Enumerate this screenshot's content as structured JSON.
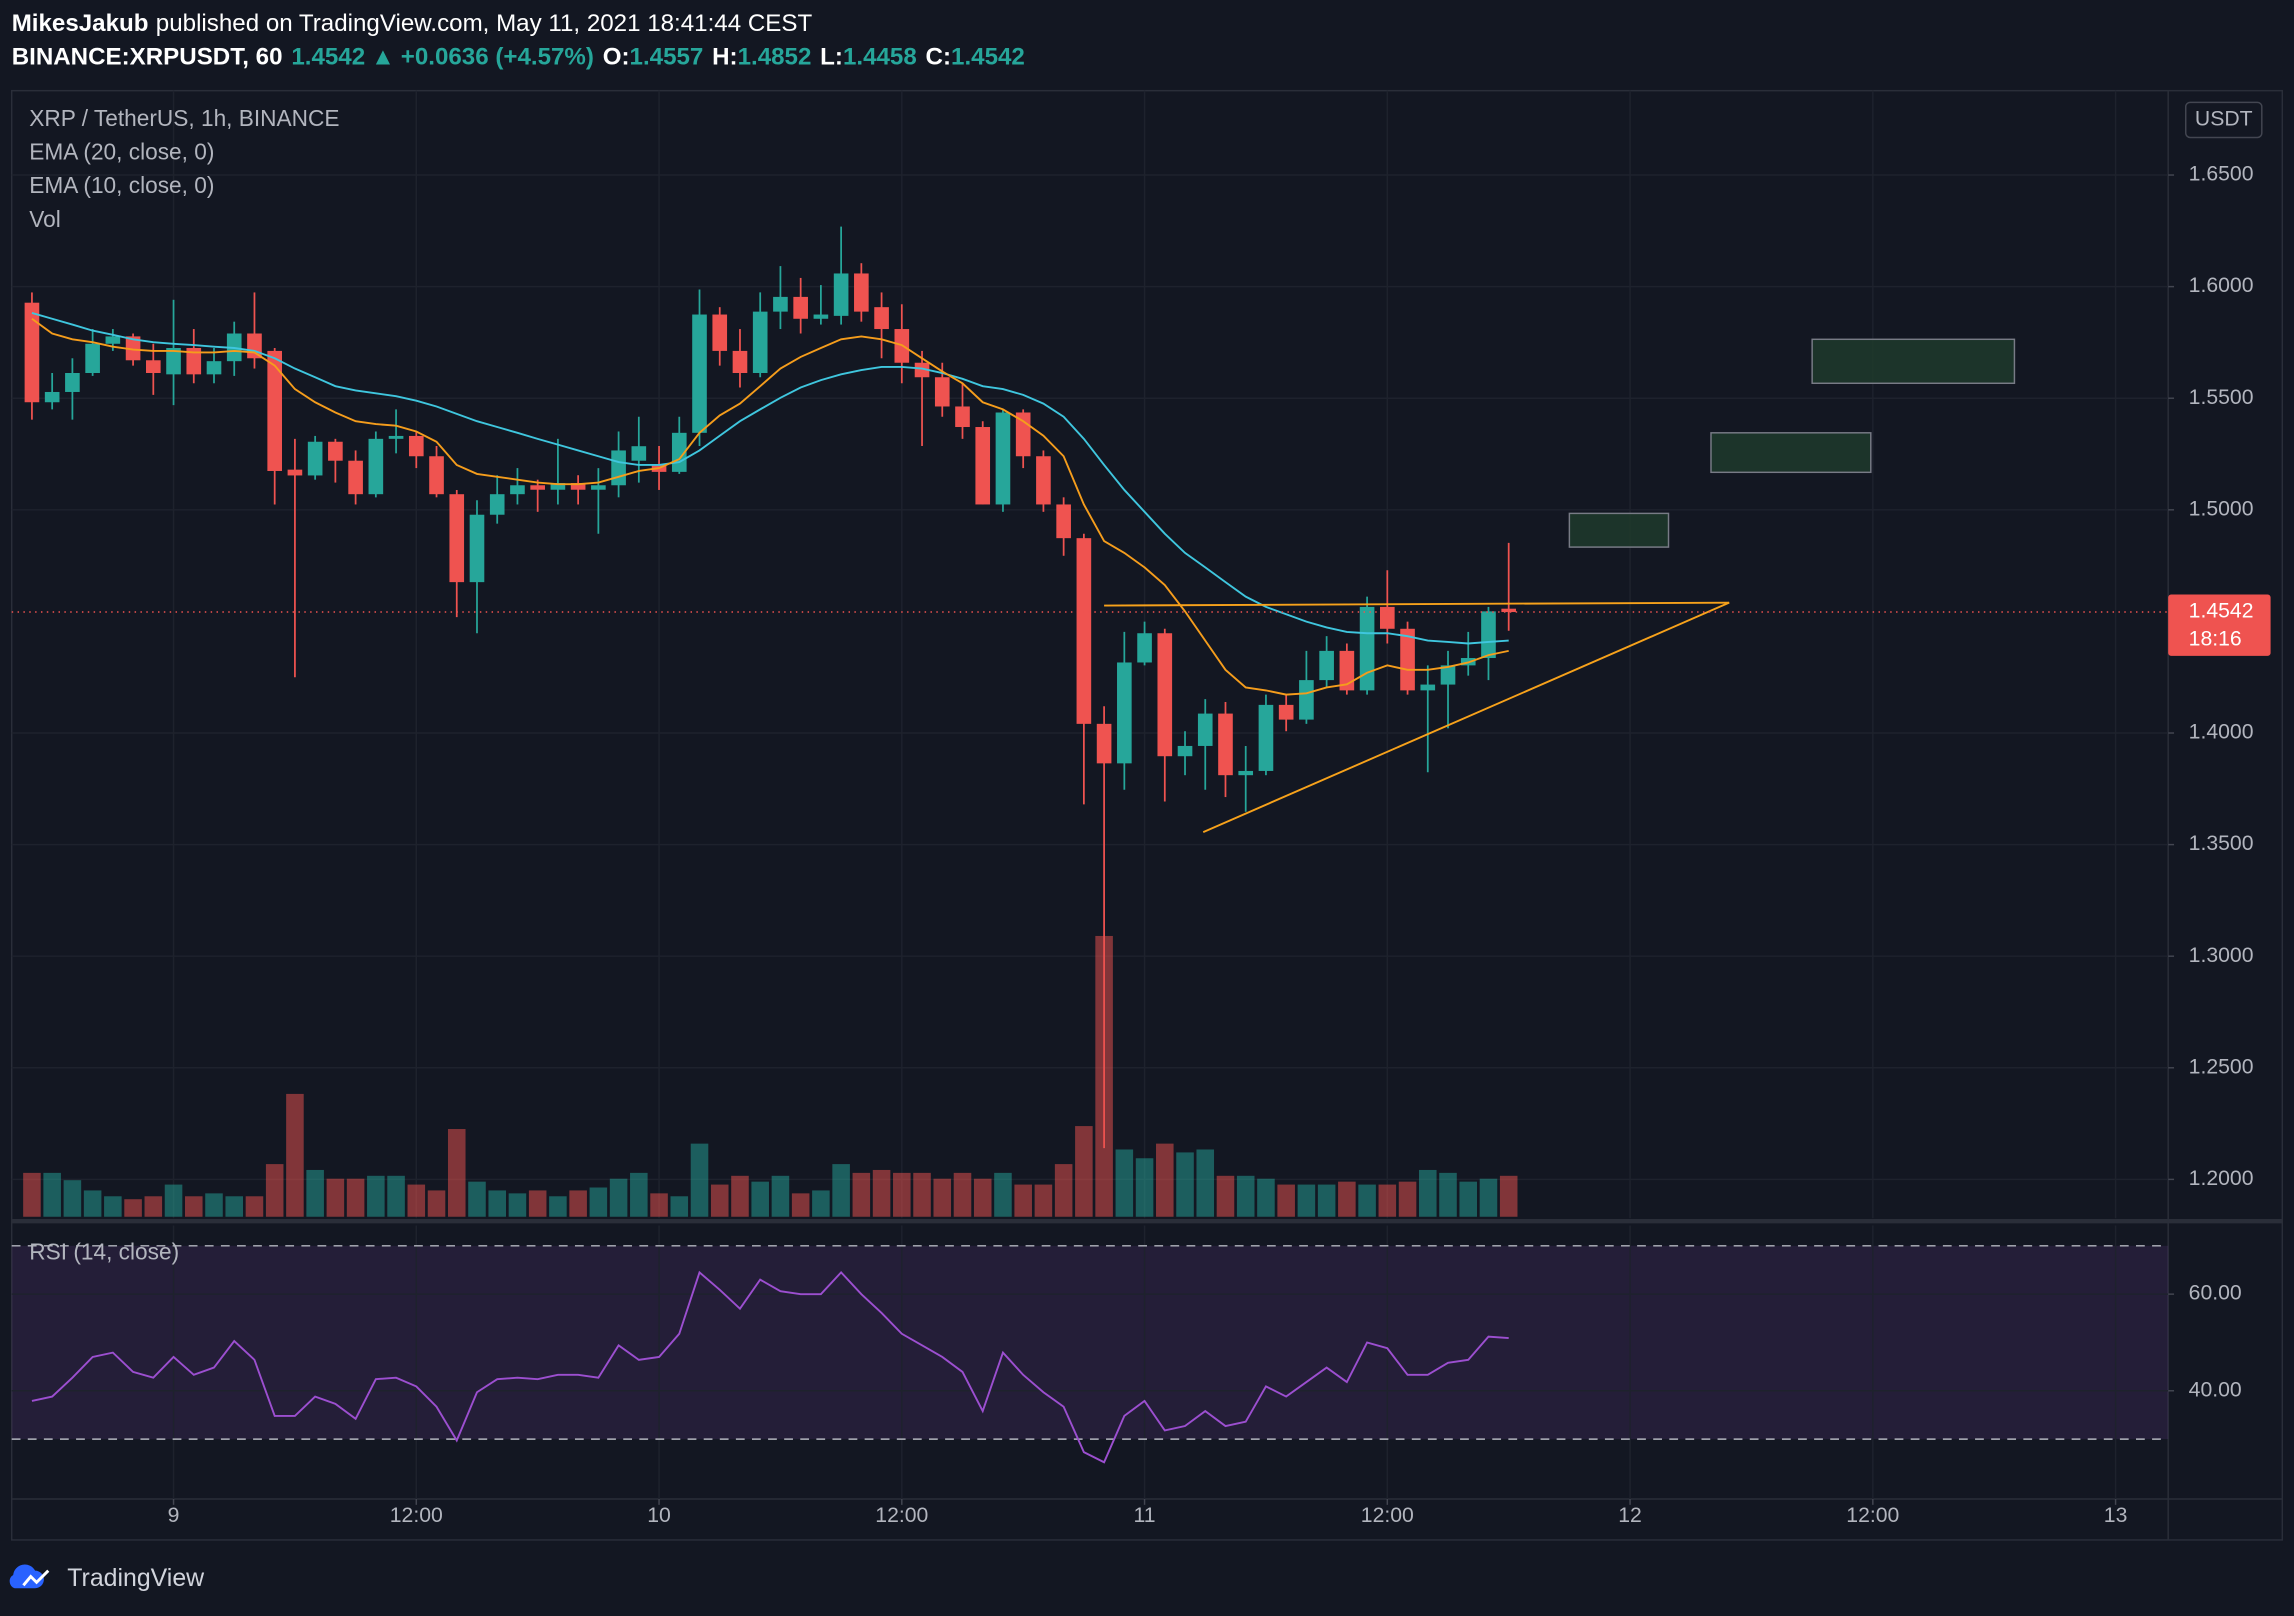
{
  "header": {
    "publisher": "MikesJakub",
    "published": "published on TradingView.com, May 11, 2021 18:41:44 CEST",
    "symbol": "BINANCE:XRPUSDT, 60",
    "price": "1.4542",
    "arrow": "▲",
    "change": "+0.0636 (+4.57%)",
    "o_label": "O:",
    "o": "1.4557",
    "h_label": "H:",
    "h": "1.4852",
    "l_label": "L:",
    "l": "1.4458",
    "c_label": "C:",
    "c": "1.4542"
  },
  "footer": {
    "brand": "TradingView"
  },
  "chart_data": {
    "type": "candlestick",
    "title": "XRP / TetherUS, 1h, BINANCE",
    "currency": "USDT",
    "up_color": "#26a69a",
    "down_color": "#ef5350",
    "open": [
      1.5928,
      1.5482,
      1.5528,
      1.5613,
      1.5744,
      1.5777,
      1.567,
      1.5607,
      1.5725,
      1.5607,
      1.5666,
      1.579,
      1.5712,
      1.518,
      1.5154,
      1.5305,
      1.522,
      1.507,
      1.5318,
      1.5331,
      1.524,
      1.507,
      1.4676,
      1.4978,
      1.507,
      1.511,
      1.509,
      1.512,
      1.509,
      1.511,
      1.522,
      1.5205,
      1.517,
      1.5345,
      1.5875,
      1.5712,
      1.5613,
      1.5888,
      1.5954,
      1.5856,
      1.5869,
      1.6059,
      1.5908,
      1.581,
      1.5659,
      1.5594,
      1.5463,
      1.5371,
      1.5024,
      1.5436,
      1.524,
      1.5024,
      1.4873,
      1.4041,
      1.3864,
      1.4316,
      1.4447,
      1.3896,
      1.3942,
      1.4087,
      1.3811,
      1.383,
      1.4126,
      1.406,
      1.4237,
      1.4368,
      1.4191,
      1.4565,
      1.4467,
      1.4191,
      1.4217,
      1.4303,
      1.4336,
      1.4557
    ],
    "high": [
      1.5974,
      1.5613,
      1.5679,
      1.581,
      1.581,
      1.579,
      1.5744,
      1.5941,
      1.581,
      1.5725,
      1.5843,
      1.5974,
      1.5725,
      1.5318,
      1.5331,
      1.5318,
      1.5266,
      1.5351,
      1.545,
      1.5351,
      1.5286,
      1.5089,
      1.5043,
      1.5155,
      1.5187,
      1.5135,
      1.5318,
      1.5155,
      1.5187,
      1.5351,
      1.5417,
      1.5286,
      1.5417,
      1.5987,
      1.5908,
      1.581,
      1.5974,
      1.6092,
      1.6039,
      1.6007,
      1.6269,
      1.6105,
      1.5974,
      1.5921,
      1.5712,
      1.5659,
      1.5567,
      1.5397,
      1.545,
      1.545,
      1.5266,
      1.5056,
      1.4893,
      1.412,
      1.4453,
      1.4499,
      1.4467,
      1.4008,
      1.4152,
      1.4139,
      1.3942,
      1.4172,
      1.4172,
      1.4368,
      1.4434,
      1.4401,
      1.4611,
      1.4729,
      1.4499,
      1.4303,
      1.4368,
      1.4453,
      1.4565,
      1.4852
    ],
    "low": [
      1.5404,
      1.545,
      1.5404,
      1.56,
      1.5712,
      1.5646,
      1.5515,
      1.5469,
      1.5567,
      1.5567,
      1.56,
      1.5633,
      1.5024,
      1.425,
      1.5135,
      1.5122,
      1.5024,
      1.5056,
      1.5253,
      1.5187,
      1.5056,
      1.4519,
      1.4447,
      1.4938,
      1.5024,
      1.4991,
      1.5024,
      1.5024,
      1.4893,
      1.5056,
      1.5122,
      1.5089,
      1.5161,
      1.5286,
      1.5646,
      1.5548,
      1.5594,
      1.581,
      1.579,
      1.583,
      1.583,
      1.5843,
      1.5679,
      1.5567,
      1.5286,
      1.5417,
      1.5318,
      1.5024,
      1.4991,
      1.5187,
      1.4991,
      1.4794,
      1.368,
      1.214,
      1.3746,
      1.4303,
      1.3693,
      1.3811,
      1.3746,
      1.3713,
      1.3647,
      1.3811,
      1.4008,
      1.4041,
      1.4204,
      1.4172,
      1.4172,
      1.4401,
      1.4172,
      1.3824,
      1.4021,
      1.4257,
      1.4237,
      1.4458
    ],
    "close": [
      1.5482,
      1.5528,
      1.5613,
      1.5744,
      1.5777,
      1.567,
      1.5613,
      1.5725,
      1.5607,
      1.5666,
      1.579,
      1.5679,
      1.5174,
      1.5154,
      1.5305,
      1.522,
      1.507,
      1.5318,
      1.5331,
      1.524,
      1.507,
      1.4676,
      1.4978,
      1.507,
      1.511,
      1.509,
      1.512,
      1.509,
      1.511,
      1.5266,
      1.5285,
      1.517,
      1.5345,
      1.5875,
      1.5712,
      1.5613,
      1.5888,
      1.5954,
      1.5856,
      1.5875,
      1.6059,
      1.5888,
      1.581,
      1.5659,
      1.5594,
      1.5463,
      1.5371,
      1.5024,
      1.5436,
      1.524,
      1.5024,
      1.4873,
      1.4041,
      1.3864,
      1.4316,
      1.4447,
      1.3896,
      1.3942,
      1.4087,
      1.3811,
      1.383,
      1.4126,
      1.406,
      1.4237,
      1.4368,
      1.4191,
      1.4565,
      1.4467,
      1.4191,
      1.4217,
      1.4303,
      1.4336,
      1.4545,
      1.4542
    ],
    "xlim": [
      -1,
      105.6
    ],
    "xticks": [
      {
        "value": 7,
        "label": "9"
      },
      {
        "value": 19,
        "label": "12:00"
      },
      {
        "value": 31,
        "label": "10"
      },
      {
        "value": 43,
        "label": "12:00"
      },
      {
        "value": 55,
        "label": "11"
      },
      {
        "value": 67,
        "label": "12:00"
      },
      {
        "value": 79,
        "label": "12"
      },
      {
        "value": 91,
        "label": "12:00"
      },
      {
        "value": 103,
        "label": "13"
      }
    ],
    "ylim": [
      1.1826,
      1.6878
    ],
    "yticks": [
      {
        "value": 1.65,
        "label": "1.6500"
      },
      {
        "value": 1.6,
        "label": "1.6000"
      },
      {
        "value": 1.55,
        "label": "1.5500"
      },
      {
        "value": 1.5,
        "label": "1.5000"
      },
      {
        "value": 1.4,
        "label": "1.4000"
      },
      {
        "value": 1.35,
        "label": "1.3500"
      },
      {
        "value": 1.3,
        "label": "1.3000"
      },
      {
        "value": 1.25,
        "label": "1.2500"
      },
      {
        "value": 1.2,
        "label": "1.2000"
      }
    ],
    "grid": true,
    "last_price": 1.4542,
    "countdown": "18:16",
    "series": [
      {
        "name": "EMA (20, close, 0)",
        "color": "#3fc6de",
        "values": [
          1.5882,
          1.5856,
          1.583,
          1.5803,
          1.5784,
          1.5764,
          1.5751,
          1.5744,
          1.5738,
          1.5731,
          1.5725,
          1.5712,
          1.5679,
          1.5633,
          1.5594,
          1.5554,
          1.5535,
          1.5522,
          1.5509,
          1.5489,
          1.5463,
          1.543,
          1.5397,
          1.5371,
          1.5345,
          1.5318,
          1.5292,
          1.5266,
          1.524,
          1.5214,
          1.5201,
          1.5201,
          1.5214,
          1.5266,
          1.5332,
          1.5397,
          1.545,
          1.5502,
          1.5548,
          1.5581,
          1.5607,
          1.5626,
          1.564,
          1.564,
          1.5633,
          1.5613,
          1.5587,
          1.5554,
          1.5541,
          1.5515,
          1.5476,
          1.5417,
          1.5318,
          1.5201,
          1.5089,
          1.4991,
          1.4893,
          1.4807,
          1.4742,
          1.4676,
          1.4611,
          1.4565,
          1.4532,
          1.4499,
          1.4473,
          1.4453,
          1.4447,
          1.4447,
          1.4434,
          1.4414,
          1.4408,
          1.4401,
          1.4408,
          1.4414
        ]
      },
      {
        "name": "EMA (10, close, 0)",
        "color": "#f59d1c",
        "values": [
          1.5856,
          1.579,
          1.5764,
          1.5751,
          1.5731,
          1.5718,
          1.5712,
          1.5712,
          1.5705,
          1.5705,
          1.5712,
          1.5705,
          1.5646,
          1.5541,
          1.5482,
          1.5436,
          1.5397,
          1.5384,
          1.5377,
          1.5351,
          1.5305,
          1.5201,
          1.5161,
          1.5148,
          1.5135,
          1.5122,
          1.5115,
          1.5115,
          1.5122,
          1.5148,
          1.5174,
          1.5187,
          1.5227,
          1.5345,
          1.5423,
          1.5476,
          1.5554,
          1.5633,
          1.5685,
          1.5725,
          1.5764,
          1.5777,
          1.5764,
          1.5738,
          1.5679,
          1.562,
          1.5567,
          1.5482,
          1.545,
          1.5397,
          1.5332,
          1.524,
          1.5024,
          1.486,
          1.4807,
          1.4742,
          1.4663,
          1.4545,
          1.4414,
          1.4283,
          1.4204,
          1.4191,
          1.4172,
          1.4178,
          1.4204,
          1.4218,
          1.427,
          1.4303,
          1.4283,
          1.4283,
          1.4296,
          1.4316,
          1.4349,
          1.4368
        ]
      }
    ],
    "volume": {
      "name": "Vol",
      "values": [
        30,
        30,
        25,
        18,
        14,
        12,
        14,
        22,
        14,
        16,
        14,
        14,
        36,
        84,
        32,
        26,
        26,
        28,
        28,
        22,
        18,
        60,
        24,
        18,
        16,
        18,
        14,
        18,
        20,
        26,
        30,
        16,
        14,
        50,
        22,
        28,
        24,
        28,
        16,
        18,
        36,
        30,
        32,
        30,
        30,
        26,
        30,
        26,
        30,
        22,
        22,
        36,
        62,
        192,
        46,
        40,
        50,
        44,
        46,
        28,
        28,
        26,
        22,
        22,
        22,
        24,
        22,
        22,
        24,
        32,
        30,
        24,
        26,
        28
      ]
    },
    "rsi": {
      "name": "RSI (14, close)",
      "color": "#9c4fd0",
      "values": [
        37.9,
        38.8,
        42.7,
        47.0,
        47.9,
        43.9,
        42.7,
        47.0,
        43.3,
        44.8,
        50.3,
        46.4,
        34.8,
        34.8,
        38.8,
        37.3,
        34.2,
        42.4,
        42.7,
        40.9,
        36.7,
        29.7,
        39.7,
        42.4,
        42.7,
        42.4,
        43.3,
        43.3,
        42.7,
        49.4,
        46.4,
        47.0,
        51.8,
        64.5,
        60.9,
        57.0,
        63.0,
        60.6,
        60.0,
        60.0,
        64.5,
        60.0,
        56.1,
        51.8,
        49.4,
        47.0,
        43.9,
        35.8,
        47.9,
        43.3,
        39.7,
        36.7,
        27.3,
        25.2,
        34.8,
        37.9,
        31.8,
        32.7,
        35.8,
        32.7,
        33.6,
        40.9,
        38.8,
        41.8,
        44.8,
        41.8,
        50.0,
        48.8,
        43.3,
        43.3,
        45.8,
        46.4,
        51.2,
        50.9
      ],
      "ylim": [
        17.6,
        74.2
      ],
      "yticks": [
        {
          "value": 60,
          "label": "60.00"
        },
        {
          "value": 40,
          "label": "40.00"
        }
      ],
      "levels": [
        30,
        70
      ]
    },
    "drawings": {
      "line_color": "#f7a21b",
      "lines": [
        {
          "x": [
            53.0,
            83.9
          ],
          "y": [
            1.4571,
            1.4584
          ]
        },
        {
          "x": [
            57.9,
            83.9
          ],
          "y": [
            1.3556,
            1.4584
          ]
        }
      ],
      "box_color": "#1e3a2c",
      "boxes": [
        {
          "x": [
            76.0,
            80.9
          ],
          "y": [
            1.4984,
            1.4833
          ]
        },
        {
          "x": [
            83.0,
            90.9
          ],
          "y": [
            1.5345,
            1.5168
          ]
        },
        {
          "x": [
            88.0,
            98.0
          ],
          "y": [
            1.5764,
            1.5567
          ]
        }
      ]
    }
  }
}
